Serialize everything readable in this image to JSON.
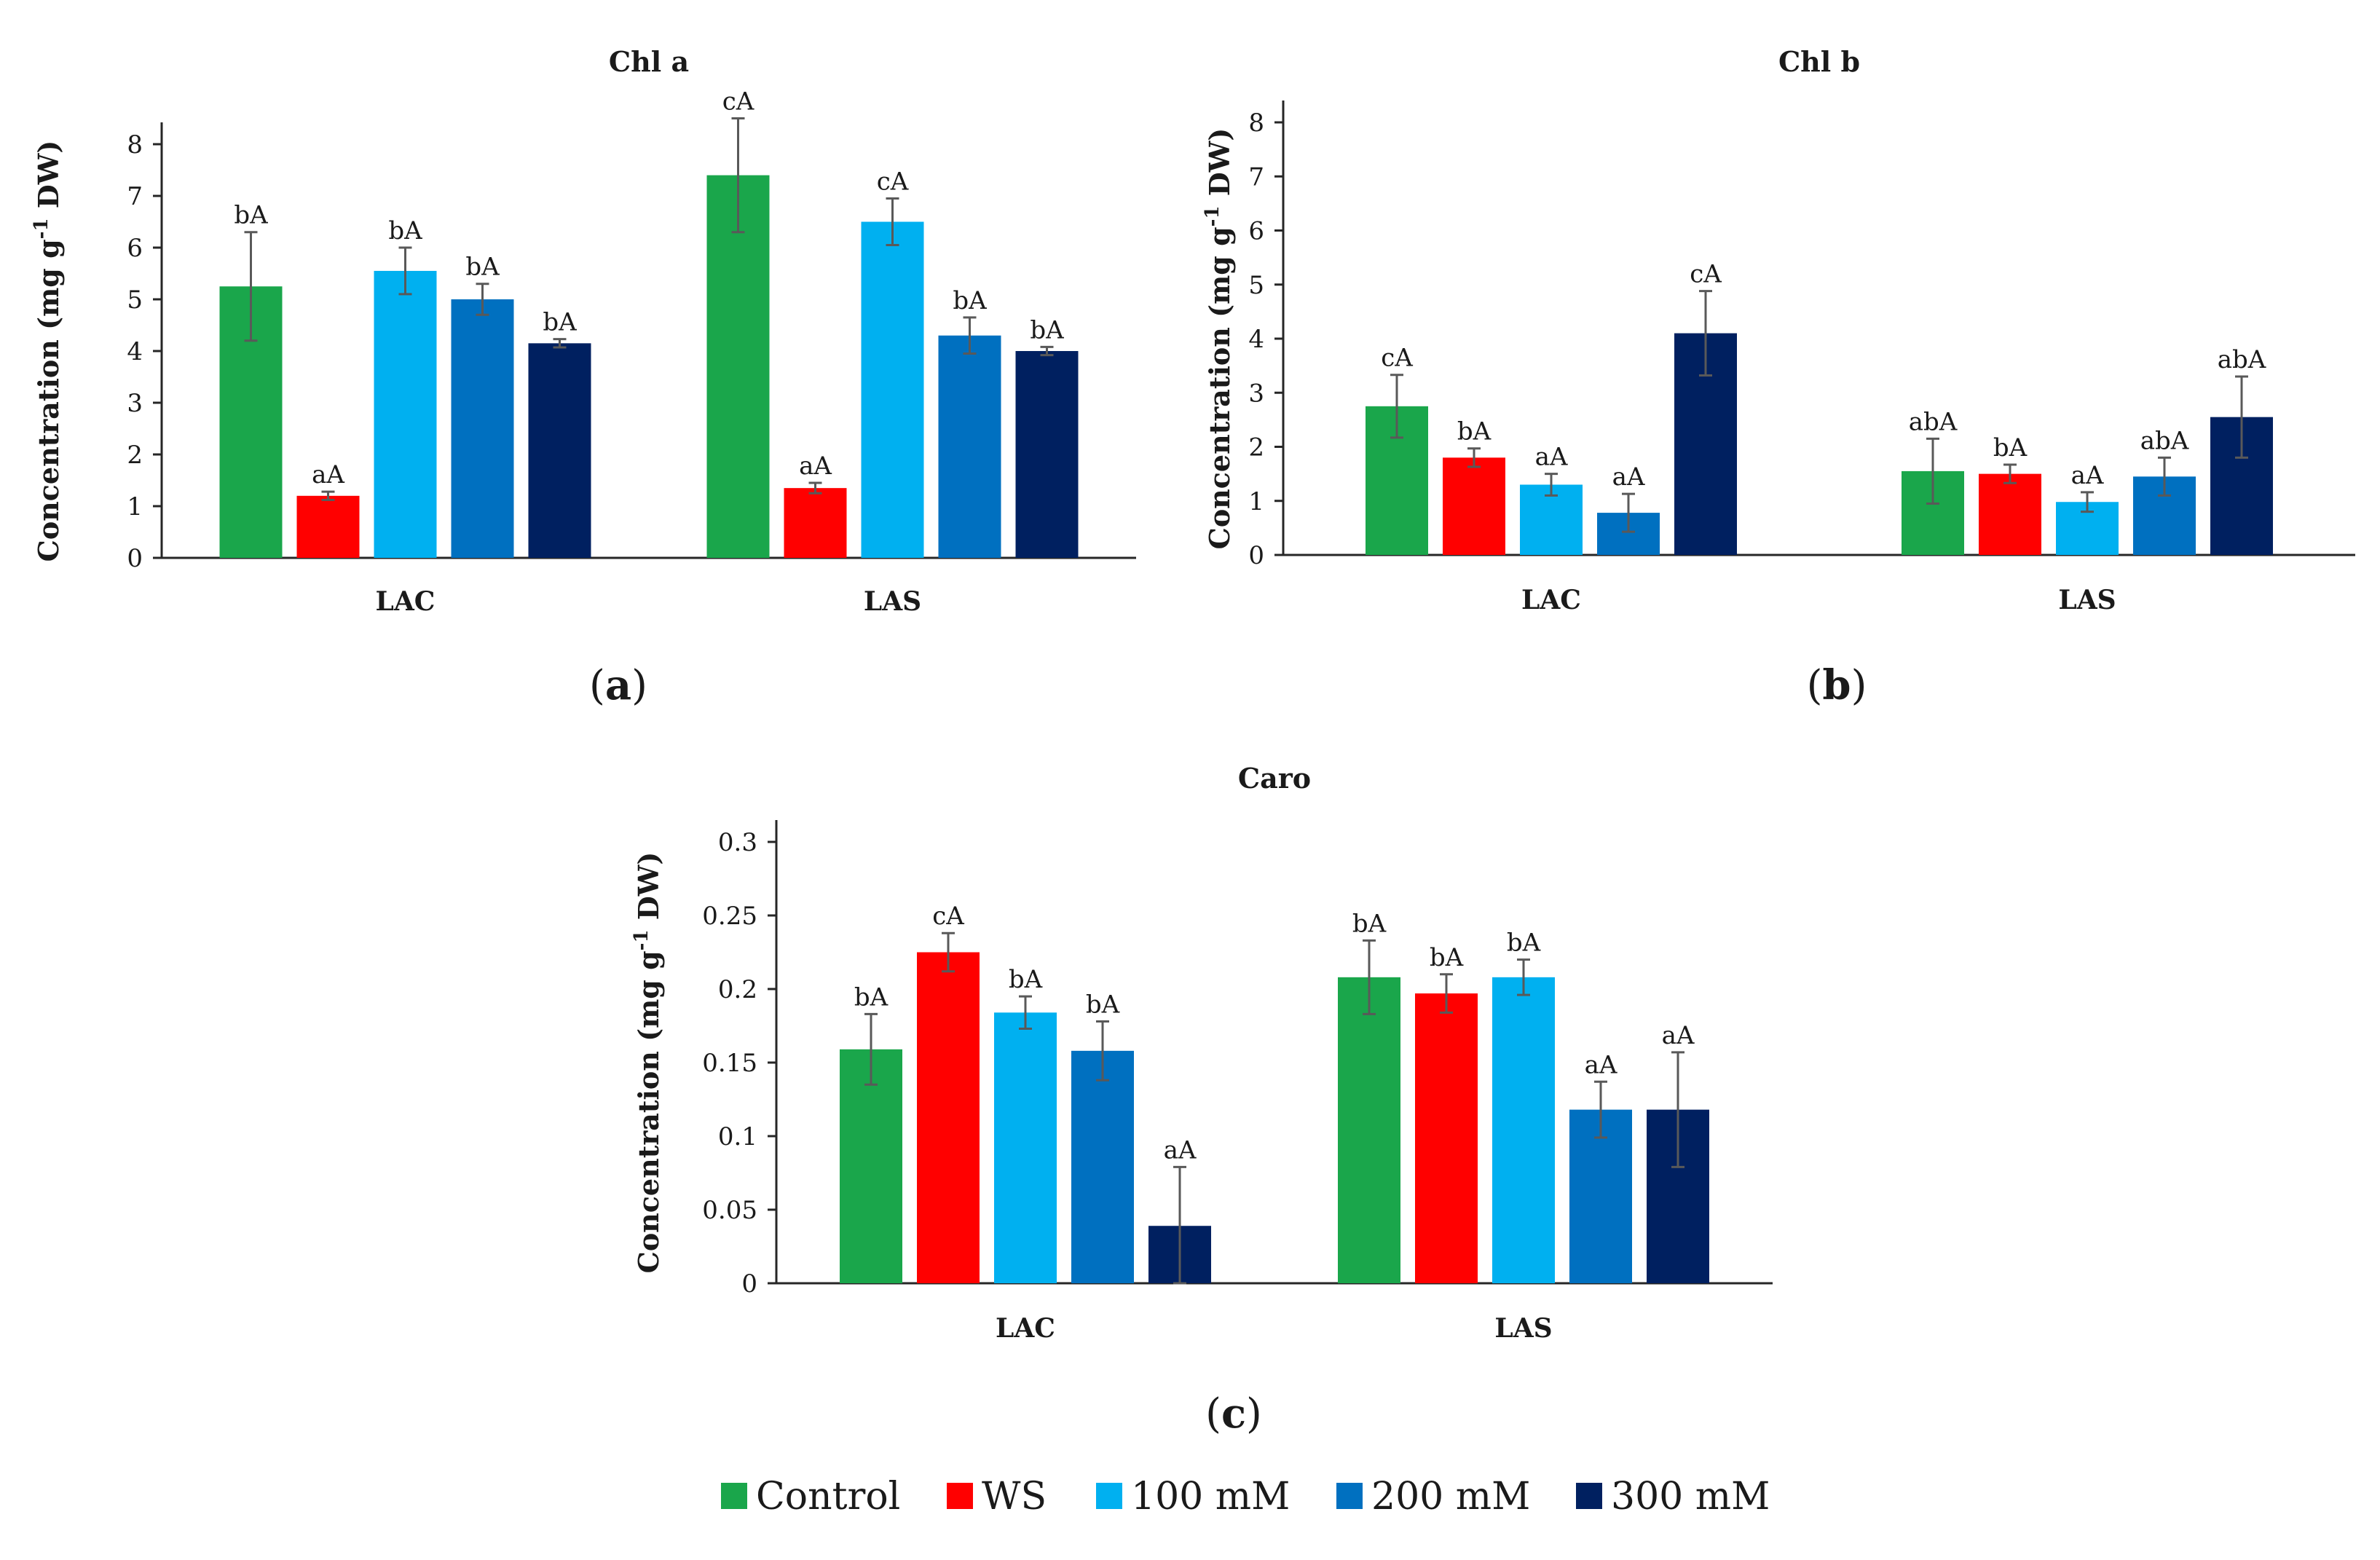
{
  "legend": {
    "position": "bottom",
    "items": [
      {
        "name": "Control",
        "color": "#1aa64b"
      },
      {
        "name": "WS",
        "color": "#ff0000"
      },
      {
        "name": "100 mM",
        "color": "#00b0f0"
      },
      {
        "name": "200 mM",
        "color": "#0070c0"
      },
      {
        "name": "300 mM",
        "color": "#002060"
      }
    ]
  },
  "chart_data": [
    {
      "type": "bar",
      "panel": "(a)",
      "panel_prefix": "(",
      "panel_letter": "a",
      "panel_suffix": ")",
      "title": "Chl a",
      "ylabel_pre": "Concentration (mg g",
      "ylabel_sup": "-1",
      "ylabel_post": " DW)",
      "ylim": [
        0,
        8
      ],
      "yticks": [
        0,
        1,
        2,
        3,
        4,
        5,
        6,
        7,
        8
      ],
      "ytick_labels": [
        "0",
        "1",
        "2",
        "3",
        "4",
        "5",
        "6",
        "7",
        "8"
      ],
      "grid": false,
      "categories": [
        "LAC",
        "LAS"
      ],
      "series": [
        {
          "name": "Control",
          "values": [
            5.25,
            7.4
          ],
          "errors": [
            1.05,
            1.1
          ],
          "labels": [
            "bA",
            "cA"
          ]
        },
        {
          "name": "WS",
          "values": [
            1.2,
            1.35
          ],
          "errors": [
            0.08,
            0.1
          ],
          "labels": [
            "aA",
            "aA"
          ]
        },
        {
          "name": "100 mM",
          "values": [
            5.55,
            6.5
          ],
          "errors": [
            0.45,
            0.45
          ],
          "labels": [
            "bA",
            "cA"
          ]
        },
        {
          "name": "200 mM",
          "values": [
            5.0,
            4.3
          ],
          "errors": [
            0.3,
            0.35
          ],
          "labels": [
            "bA",
            "bA"
          ]
        },
        {
          "name": "300 mM",
          "values": [
            4.15,
            4.0
          ],
          "errors": [
            0.08,
            0.08
          ],
          "labels": [
            "bA",
            "bA"
          ]
        }
      ]
    },
    {
      "type": "bar",
      "panel": "(b)",
      "panel_prefix": "(",
      "panel_letter": "b",
      "panel_suffix": ")",
      "title": "Chl b",
      "ylabel_pre": "Concentration (mg g",
      "ylabel_sup": "-1",
      "ylabel_post": " DW)",
      "ylim": [
        0,
        8
      ],
      "yticks": [
        0,
        1,
        2,
        3,
        4,
        5,
        6,
        7,
        8
      ],
      "ytick_labels": [
        "0",
        "1",
        "2",
        "3",
        "4",
        "5",
        "6",
        "7",
        "8"
      ],
      "grid": false,
      "categories": [
        "LAC",
        "LAS"
      ],
      "series": [
        {
          "name": "Control",
          "values": [
            2.75,
            1.55
          ],
          "errors": [
            0.58,
            0.6
          ],
          "labels": [
            "cA",
            "abA"
          ]
        },
        {
          "name": "WS",
          "values": [
            1.8,
            1.5
          ],
          "errors": [
            0.17,
            0.17
          ],
          "labels": [
            "bA",
            "bA"
          ]
        },
        {
          "name": "100 mM",
          "values": [
            1.3,
            0.98
          ],
          "errors": [
            0.2,
            0.18
          ],
          "labels": [
            "aA",
            "aA"
          ]
        },
        {
          "name": "200 mM",
          "values": [
            0.78,
            1.45
          ],
          "errors": [
            0.35,
            0.35
          ],
          "labels": [
            "aA",
            "abA"
          ]
        },
        {
          "name": "300 mM",
          "values": [
            4.1,
            2.55
          ],
          "errors": [
            0.78,
            0.75
          ],
          "labels": [
            "cA",
            "abA"
          ]
        }
      ]
    },
    {
      "type": "bar",
      "panel": "(c)",
      "panel_prefix": "(",
      "panel_letter": "c",
      "panel_suffix": ")",
      "title": "Caro",
      "ylabel_pre": "Concentration (mg g",
      "ylabel_sup": "-1",
      "ylabel_post": " DW)",
      "ylim": [
        0,
        0.3
      ],
      "yticks": [
        0,
        0.05,
        0.1,
        0.15,
        0.2,
        0.25,
        0.3
      ],
      "ytick_labels": [
        "0",
        "0.05",
        "0.1",
        "0.15",
        "0.2",
        "0.25",
        "0.3"
      ],
      "grid": false,
      "categories": [
        "LAC",
        "LAS"
      ],
      "series": [
        {
          "name": "Control",
          "values": [
            0.159,
            0.208
          ],
          "errors": [
            0.024,
            0.025
          ],
          "labels": [
            "bA",
            "bA"
          ]
        },
        {
          "name": "WS",
          "values": [
            0.225,
            0.197
          ],
          "errors": [
            0.013,
            0.013
          ],
          "labels": [
            "cA",
            "bA"
          ]
        },
        {
          "name": "100 mM",
          "values": [
            0.184,
            0.208
          ],
          "errors": [
            0.011,
            0.012
          ],
          "labels": [
            "bA",
            "bA"
          ]
        },
        {
          "name": "200 mM",
          "values": [
            0.158,
            0.118
          ],
          "errors": [
            0.02,
            0.019
          ],
          "labels": [
            "bA",
            "aA"
          ]
        },
        {
          "name": "300 mM",
          "values": [
            0.039,
            0.118
          ],
          "errors": [
            0.04,
            0.039
          ],
          "labels": [
            "aA",
            "aA"
          ]
        }
      ]
    }
  ]
}
